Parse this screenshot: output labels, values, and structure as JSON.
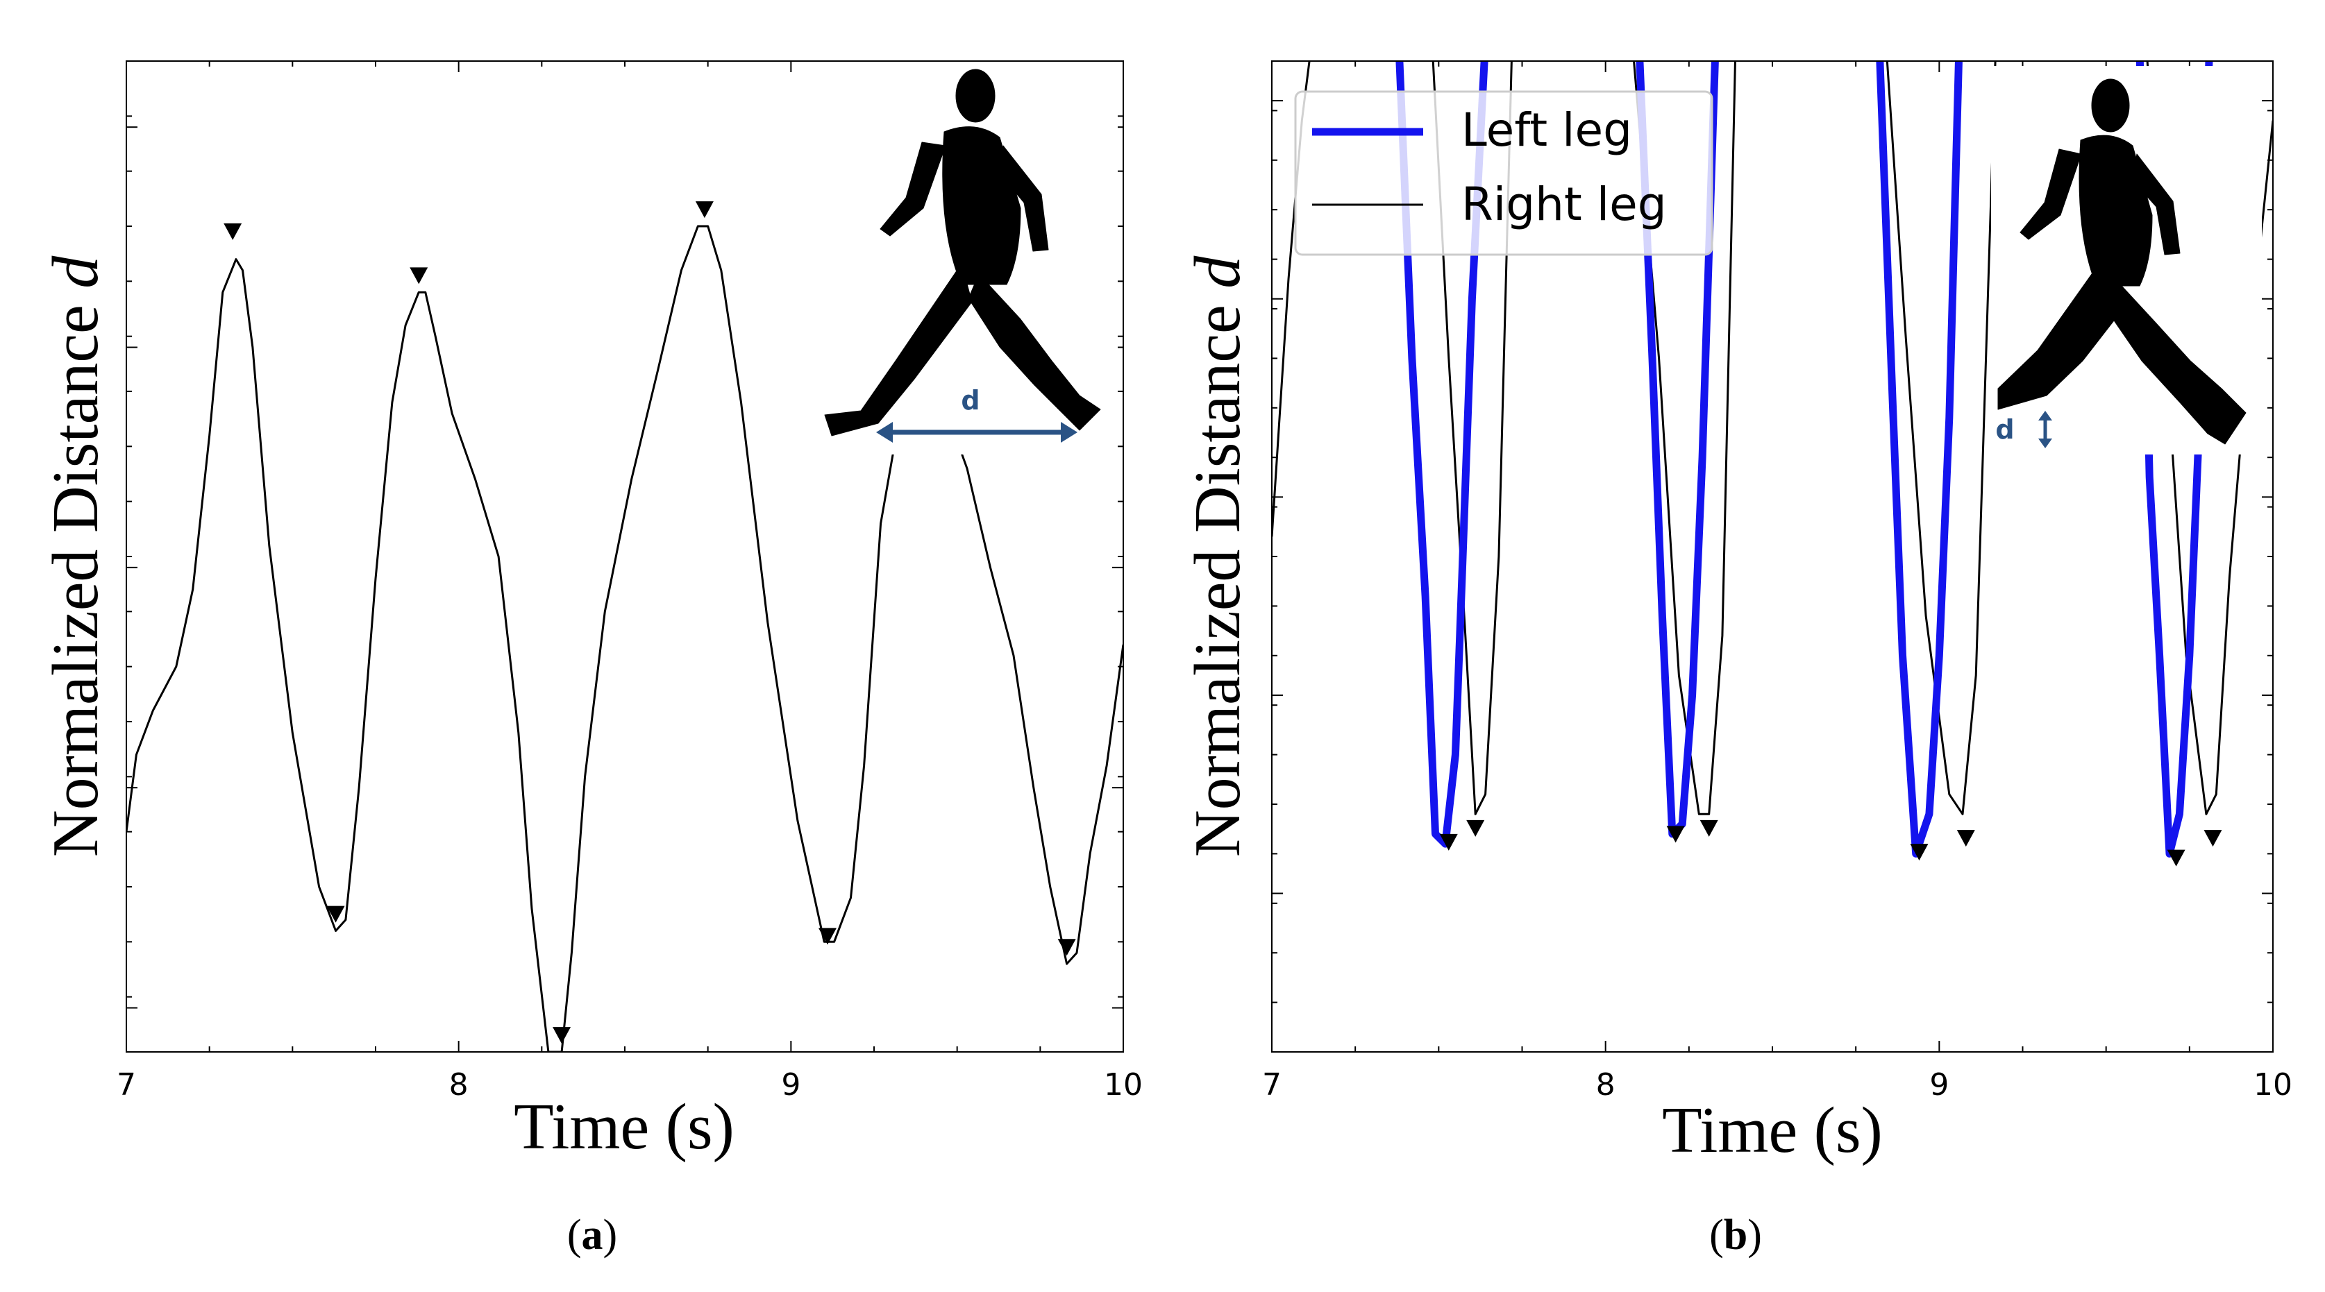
{
  "chart_data": [
    {
      "type": "line",
      "panel_label": "a",
      "xlabel": "Time (s)",
      "ylabel_prefix": "Normalized Distance ",
      "ylabel_symbol": "d",
      "xlim": [
        7,
        10
      ],
      "ylim": [
        0.06,
        0.96
      ],
      "xticks": [
        "7",
        "8",
        "9",
        "10"
      ],
      "inset_label": "d",
      "series": [
        {
          "color": "#000000",
          "x": [
            7.0,
            7.03,
            7.08,
            7.15,
            7.2,
            7.25,
            7.29,
            7.33,
            7.35,
            7.38,
            7.43,
            7.5,
            7.58,
            7.63,
            7.66,
            7.7,
            7.75,
            7.8,
            7.84,
            7.88,
            7.9,
            7.93,
            7.98,
            8.05,
            8.12,
            8.18,
            8.22,
            8.27,
            8.31,
            8.34,
            8.38,
            8.44,
            8.52,
            8.6,
            8.67,
            8.72,
            8.75,
            8.79,
            8.85,
            8.93,
            9.02,
            9.1,
            9.13,
            9.18,
            9.22,
            9.27,
            9.34,
            9.4,
            9.47,
            9.53,
            9.6,
            9.67,
            9.73,
            9.78,
            9.83,
            9.86,
            9.9,
            9.95,
            10.0
          ],
          "y": [
            0.26,
            0.33,
            0.37,
            0.41,
            0.48,
            0.62,
            0.75,
            0.78,
            0.77,
            0.7,
            0.52,
            0.35,
            0.21,
            0.17,
            0.18,
            0.3,
            0.49,
            0.65,
            0.72,
            0.75,
            0.75,
            0.71,
            0.64,
            0.58,
            0.51,
            0.35,
            0.19,
            0.06,
            0.06,
            0.15,
            0.31,
            0.46,
            0.58,
            0.68,
            0.77,
            0.81,
            0.81,
            0.77,
            0.65,
            0.45,
            0.27,
            0.16,
            0.16,
            0.2,
            0.32,
            0.54,
            0.66,
            0.7,
            0.64,
            0.59,
            0.5,
            0.42,
            0.3,
            0.21,
            0.14,
            0.15,
            0.24,
            0.32,
            0.43
          ]
        }
      ],
      "markers": [
        {
          "x": 7.32,
          "y": 0.8
        },
        {
          "x": 7.63,
          "y": 0.18
        },
        {
          "x": 7.88,
          "y": 0.76
        },
        {
          "x": 8.31,
          "y": 0.07
        },
        {
          "x": 8.74,
          "y": 0.82
        },
        {
          "x": 9.11,
          "y": 0.16
        },
        {
          "x": 9.83,
          "y": 0.15
        }
      ]
    },
    {
      "type": "line",
      "panel_label": "b",
      "xlabel": "Time (s)",
      "ylabel_prefix": "Normalized Distance ",
      "ylabel_symbol": "d",
      "xlim": [
        7,
        10
      ],
      "ylim": [
        0.02,
        0.52
      ],
      "xticks": [
        "7",
        "8",
        "9",
        "10"
      ],
      "inset_label": "d",
      "legend_position": "top-left",
      "series": [
        {
          "name": "Left leg",
          "color": "#1414ee",
          "x": [
            7.38,
            7.42,
            7.46,
            7.49,
            7.52,
            7.55,
            7.57,
            7.6,
            7.64,
            8.1,
            8.14,
            8.17,
            8.2,
            8.23,
            8.26,
            8.29,
            8.33,
            8.82,
            8.86,
            8.89,
            8.93,
            8.97,
            9.0,
            9.03,
            9.06,
            9.6,
            9.63,
            9.66,
            9.69,
            9.72,
            9.75,
            9.78,
            9.81
          ],
          "y": [
            0.53,
            0.37,
            0.25,
            0.13,
            0.125,
            0.17,
            0.26,
            0.4,
            0.53,
            0.53,
            0.37,
            0.24,
            0.13,
            0.135,
            0.2,
            0.32,
            0.53,
            0.53,
            0.35,
            0.22,
            0.12,
            0.14,
            0.22,
            0.34,
            0.53,
            0.53,
            0.31,
            0.22,
            0.12,
            0.14,
            0.22,
            0.34,
            0.53
          ]
        },
        {
          "name": "Right leg",
          "color": "#000000",
          "x": [
            7.0,
            7.05,
            7.09,
            7.12,
            7.48,
            7.53,
            7.58,
            7.61,
            7.64,
            7.68,
            7.72,
            8.08,
            8.16,
            8.22,
            8.28,
            8.31,
            8.35,
            8.39,
            8.84,
            8.9,
            8.96,
            9.03,
            9.07,
            9.11,
            9.17,
            9.62,
            9.68,
            9.74,
            9.8,
            9.83,
            9.87,
            9.92,
            10.0
          ],
          "y": [
            0.28,
            0.41,
            0.49,
            0.53,
            0.53,
            0.37,
            0.23,
            0.14,
            0.15,
            0.27,
            0.53,
            0.53,
            0.37,
            0.21,
            0.14,
            0.14,
            0.23,
            0.53,
            0.53,
            0.38,
            0.24,
            0.15,
            0.14,
            0.21,
            0.53,
            0.53,
            0.37,
            0.22,
            0.14,
            0.15,
            0.26,
            0.36,
            0.49
          ]
        }
      ],
      "markers": [
        {
          "x": 7.53,
          "y": 0.123
        },
        {
          "x": 7.61,
          "y": 0.13
        },
        {
          "x": 8.21,
          "y": 0.127
        },
        {
          "x": 8.31,
          "y": 0.13
        },
        {
          "x": 8.94,
          "y": 0.118
        },
        {
          "x": 9.08,
          "y": 0.125
        },
        {
          "x": 9.71,
          "y": 0.115
        },
        {
          "x": 9.82,
          "y": 0.125
        }
      ]
    }
  ],
  "colors": {
    "axis": "#000000",
    "inset_arrow": "#2a5385",
    "silhouette": "#000000"
  }
}
